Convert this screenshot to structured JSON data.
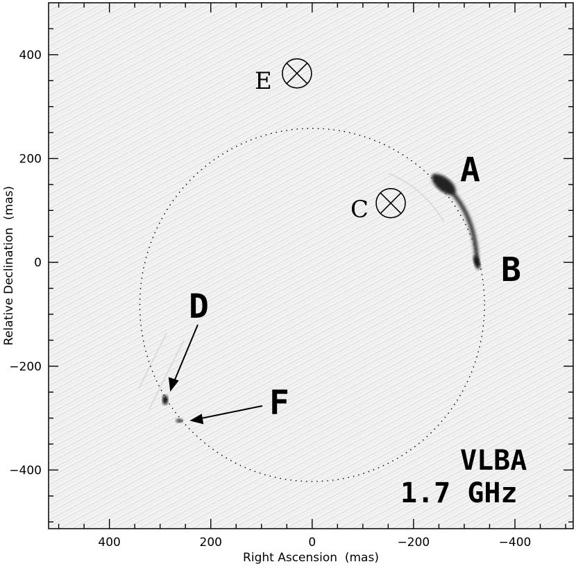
{
  "chart_data": {
    "type": "scatter",
    "title": "",
    "xlabel": "Right Ascension  (mas)",
    "ylabel": "Relative Declination  (mas)",
    "xlim": [
      520,
      -515
    ],
    "ylim": [
      -513,
      500
    ],
    "x_reversed": true,
    "xticks": [
      400,
      200,
      0,
      -200,
      -400
    ],
    "xtick_labels": [
      "400",
      "200",
      "0",
      "−200",
      "−400"
    ],
    "yticks": [
      400,
      200,
      0,
      -200,
      -400
    ],
    "ytick_labels": [
      "400",
      "200",
      "0",
      "−200",
      "−400"
    ],
    "grid": false,
    "background": "grayscale radio image",
    "ring": {
      "center_x": 0,
      "center_y": -82,
      "radius": 340,
      "style": "dotted"
    },
    "components": [
      {
        "label": "A",
        "x": -260,
        "y": 150
      },
      {
        "label": "B",
        "x": -325,
        "y": 0
      },
      {
        "label": "D",
        "x": 290,
        "y": -265
      },
      {
        "label": "F",
        "x": 262,
        "y": -305
      }
    ],
    "markers": [
      {
        "label": "E",
        "x": 30,
        "y": 364,
        "symbol": "circle-x"
      },
      {
        "label": "C",
        "x": -155,
        "y": 114,
        "symbol": "circle-x"
      }
    ],
    "annotations": [
      "VLBA",
      "1.7 GHz"
    ]
  }
}
